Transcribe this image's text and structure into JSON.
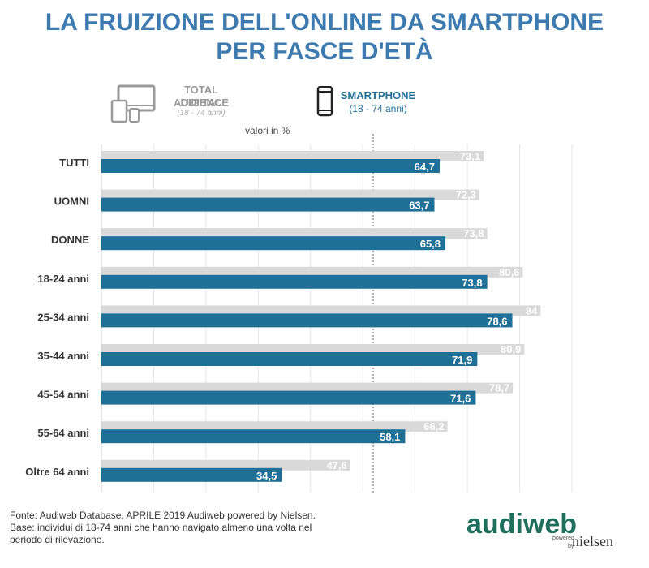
{
  "title": {
    "line1": "LA FRUIZIONE DELL'ONLINE DA SMARTPHONE",
    "line2": "PER FASCE D'ETÀ"
  },
  "legend": {
    "total": {
      "line1": "TOTAL DIGITAL",
      "line2": "AUDIENCE",
      "sub": "(18 - 74 anni)",
      "icon": "devices-icon",
      "color": "#9a9a9a"
    },
    "smartphone": {
      "line1": "SMARTPHONE",
      "sub": "(18 - 74 anni)",
      "icon": "smartphone-icon",
      "color": "#1f6f96"
    }
  },
  "units_note": "valori in %",
  "chart_data": {
    "type": "bar",
    "orientation": "horizontal",
    "categories": [
      "TUTTI",
      "UOMNI",
      "DONNE",
      "18-24 anni",
      "25-34 anni",
      "35-44 anni",
      "45-54 anni",
      "55-64 anni",
      "Oltre 64 anni"
    ],
    "series": [
      {
        "name": "TOTAL DIGITAL AUDIENCE",
        "color": "#d9d9d9",
        "label_color": "#ffffff",
        "values": [
          73.1,
          72.3,
          73.8,
          80.6,
          84,
          80.9,
          78.7,
          66.2,
          47.6
        ]
      },
      {
        "name": "SMARTPHONE",
        "color": "#1f6f96",
        "label_color": "#ffffff",
        "values": [
          64.7,
          63.7,
          65.8,
          73.8,
          78.6,
          71.9,
          71.6,
          58.1,
          34.5
        ]
      }
    ],
    "value_labels": {
      "total": [
        "73,1",
        "72,3",
        "73,8",
        "80,6",
        "84",
        "80,9",
        "78,7",
        "66,2",
        "47,6"
      ],
      "smartphone": [
        "64,7",
        "63,7",
        "65,8",
        "73,8",
        "78,6",
        "71,9",
        "71,6",
        "58,1",
        "34,5"
      ]
    },
    "xlim": [
      0,
      90
    ],
    "grid": true,
    "reference_line": 52
  },
  "footer": {
    "line1": "Fonte: Audiweb Database, APRILE 2019 Audiweb powered by Nielsen.",
    "line2": "Base: individui di 18-74 anni che hanno navigato almeno una volta nel",
    "line3": "periodo di rilevazione."
  },
  "logo": {
    "brand": "audiweb",
    "powered": "powered",
    "by": "by",
    "partner": "nielsen",
    "color": "#1f6f5c"
  }
}
